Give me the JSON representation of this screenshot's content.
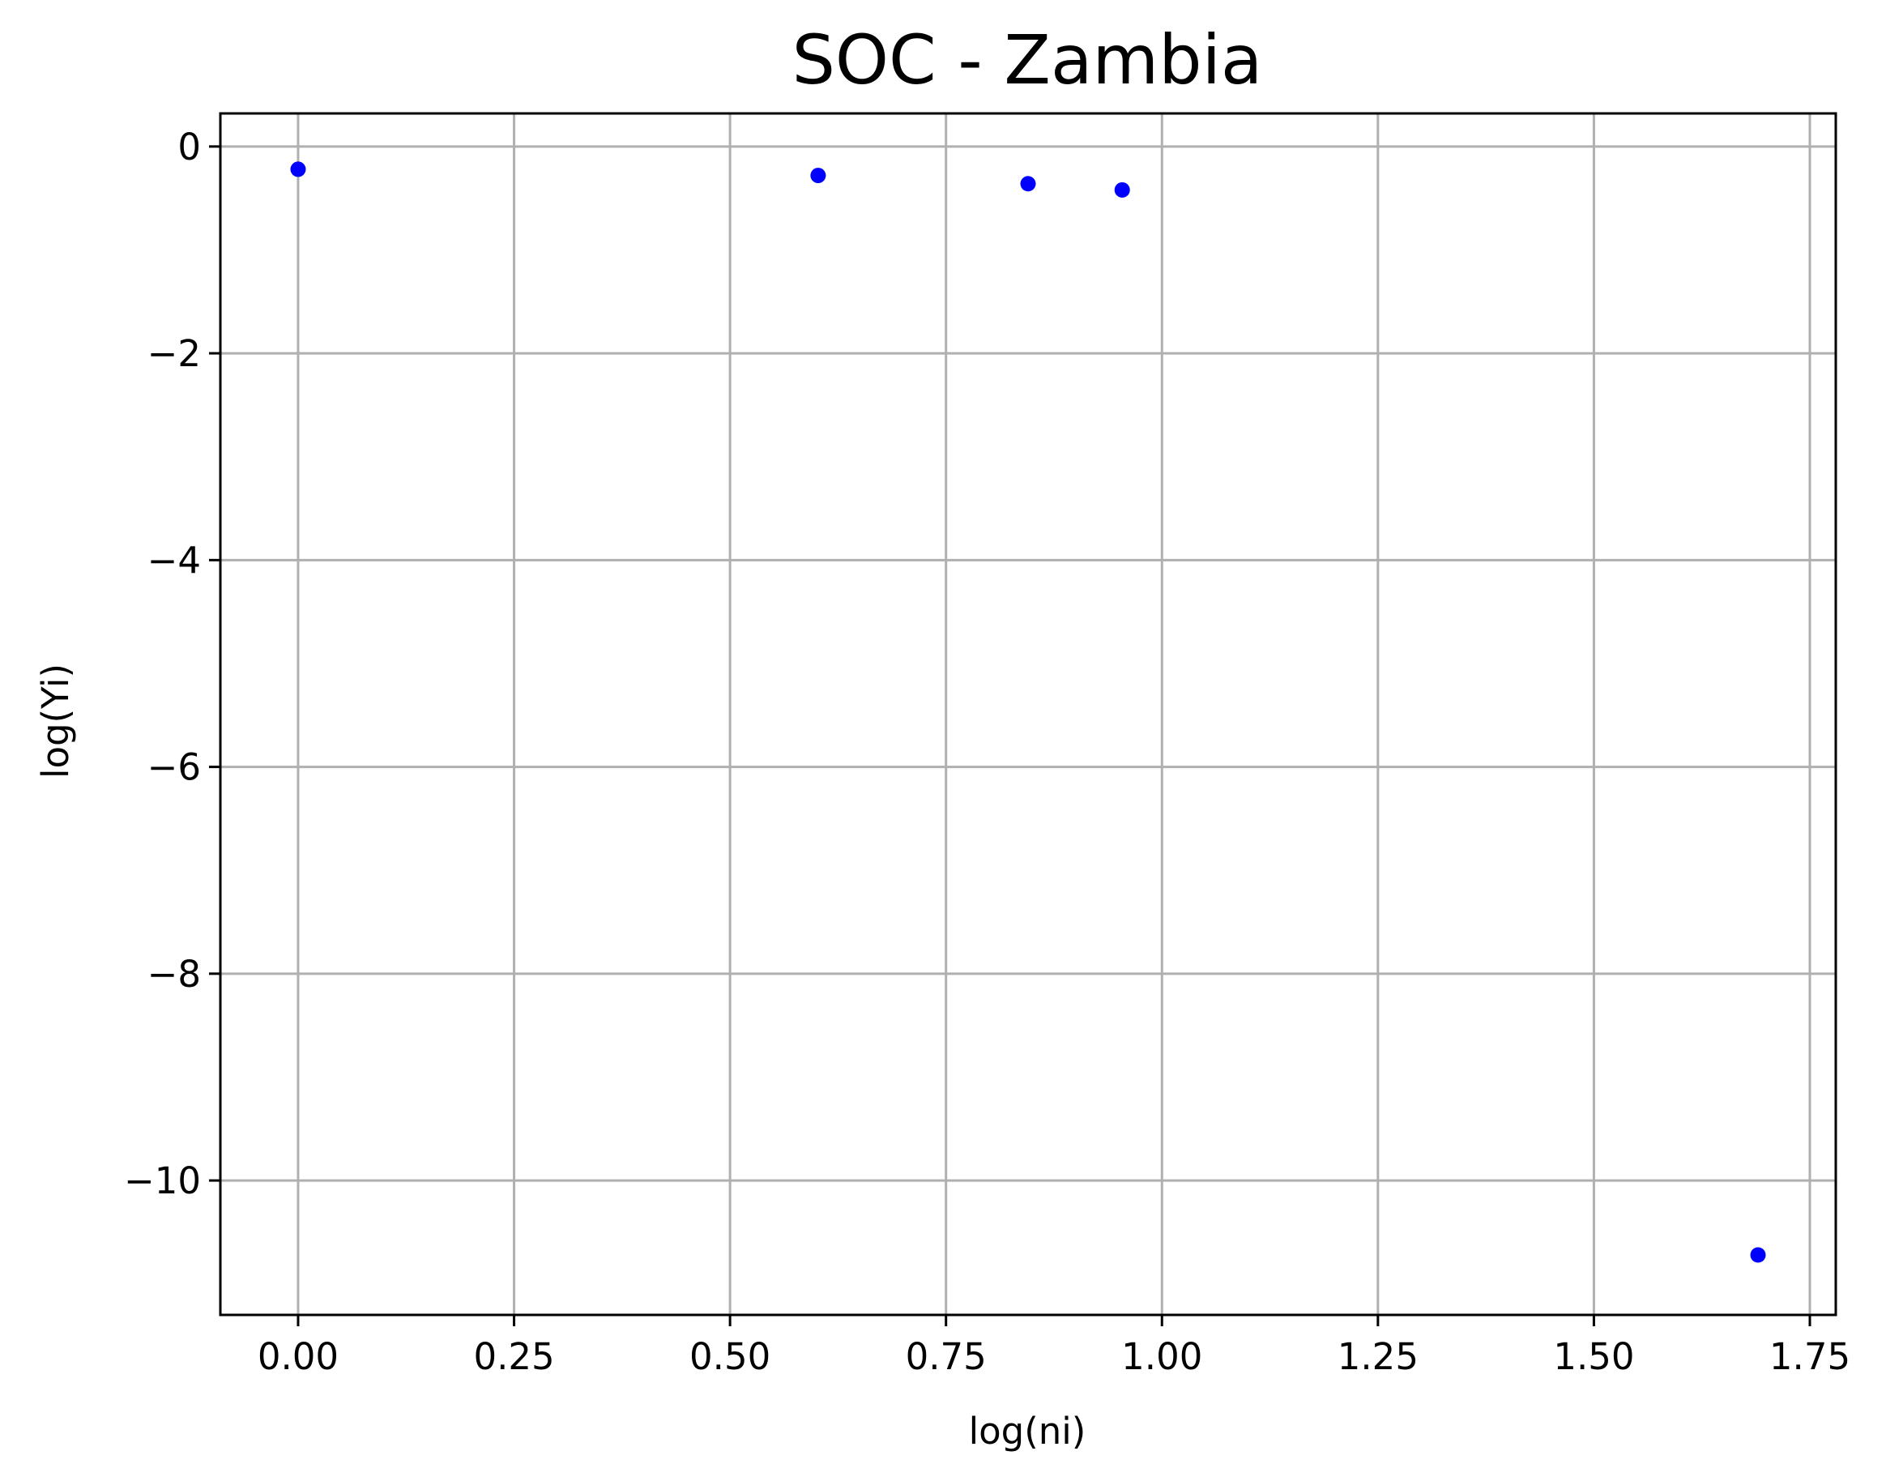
{
  "chart_data": {
    "type": "scatter",
    "title": "SOC - Zambia",
    "xlabel": "log(ni)",
    "ylabel": "log(Yi)",
    "xlim": [
      -0.09,
      1.78
    ],
    "ylim": [
      -11.3,
      0.32
    ],
    "xticks": [
      0.0,
      0.25,
      0.5,
      0.75,
      1.0,
      1.25,
      1.5,
      1.75
    ],
    "xtick_labels": [
      "0.00",
      "0.25",
      "0.50",
      "0.75",
      "1.00",
      "1.25",
      "1.50",
      "1.75"
    ],
    "yticks": [
      0,
      -2,
      -4,
      -6,
      -8,
      -10
    ],
    "ytick_labels": [
      "0",
      "−2",
      "−4",
      "−6",
      "−8",
      "−10"
    ],
    "grid": true,
    "marker_color": "#0000ff",
    "series": [
      {
        "x": [
          0.0,
          0.602,
          0.845,
          0.954,
          1.69
        ],
        "y": [
          -0.22,
          -0.28,
          -0.36,
          -0.42,
          -10.72
        ]
      }
    ]
  }
}
